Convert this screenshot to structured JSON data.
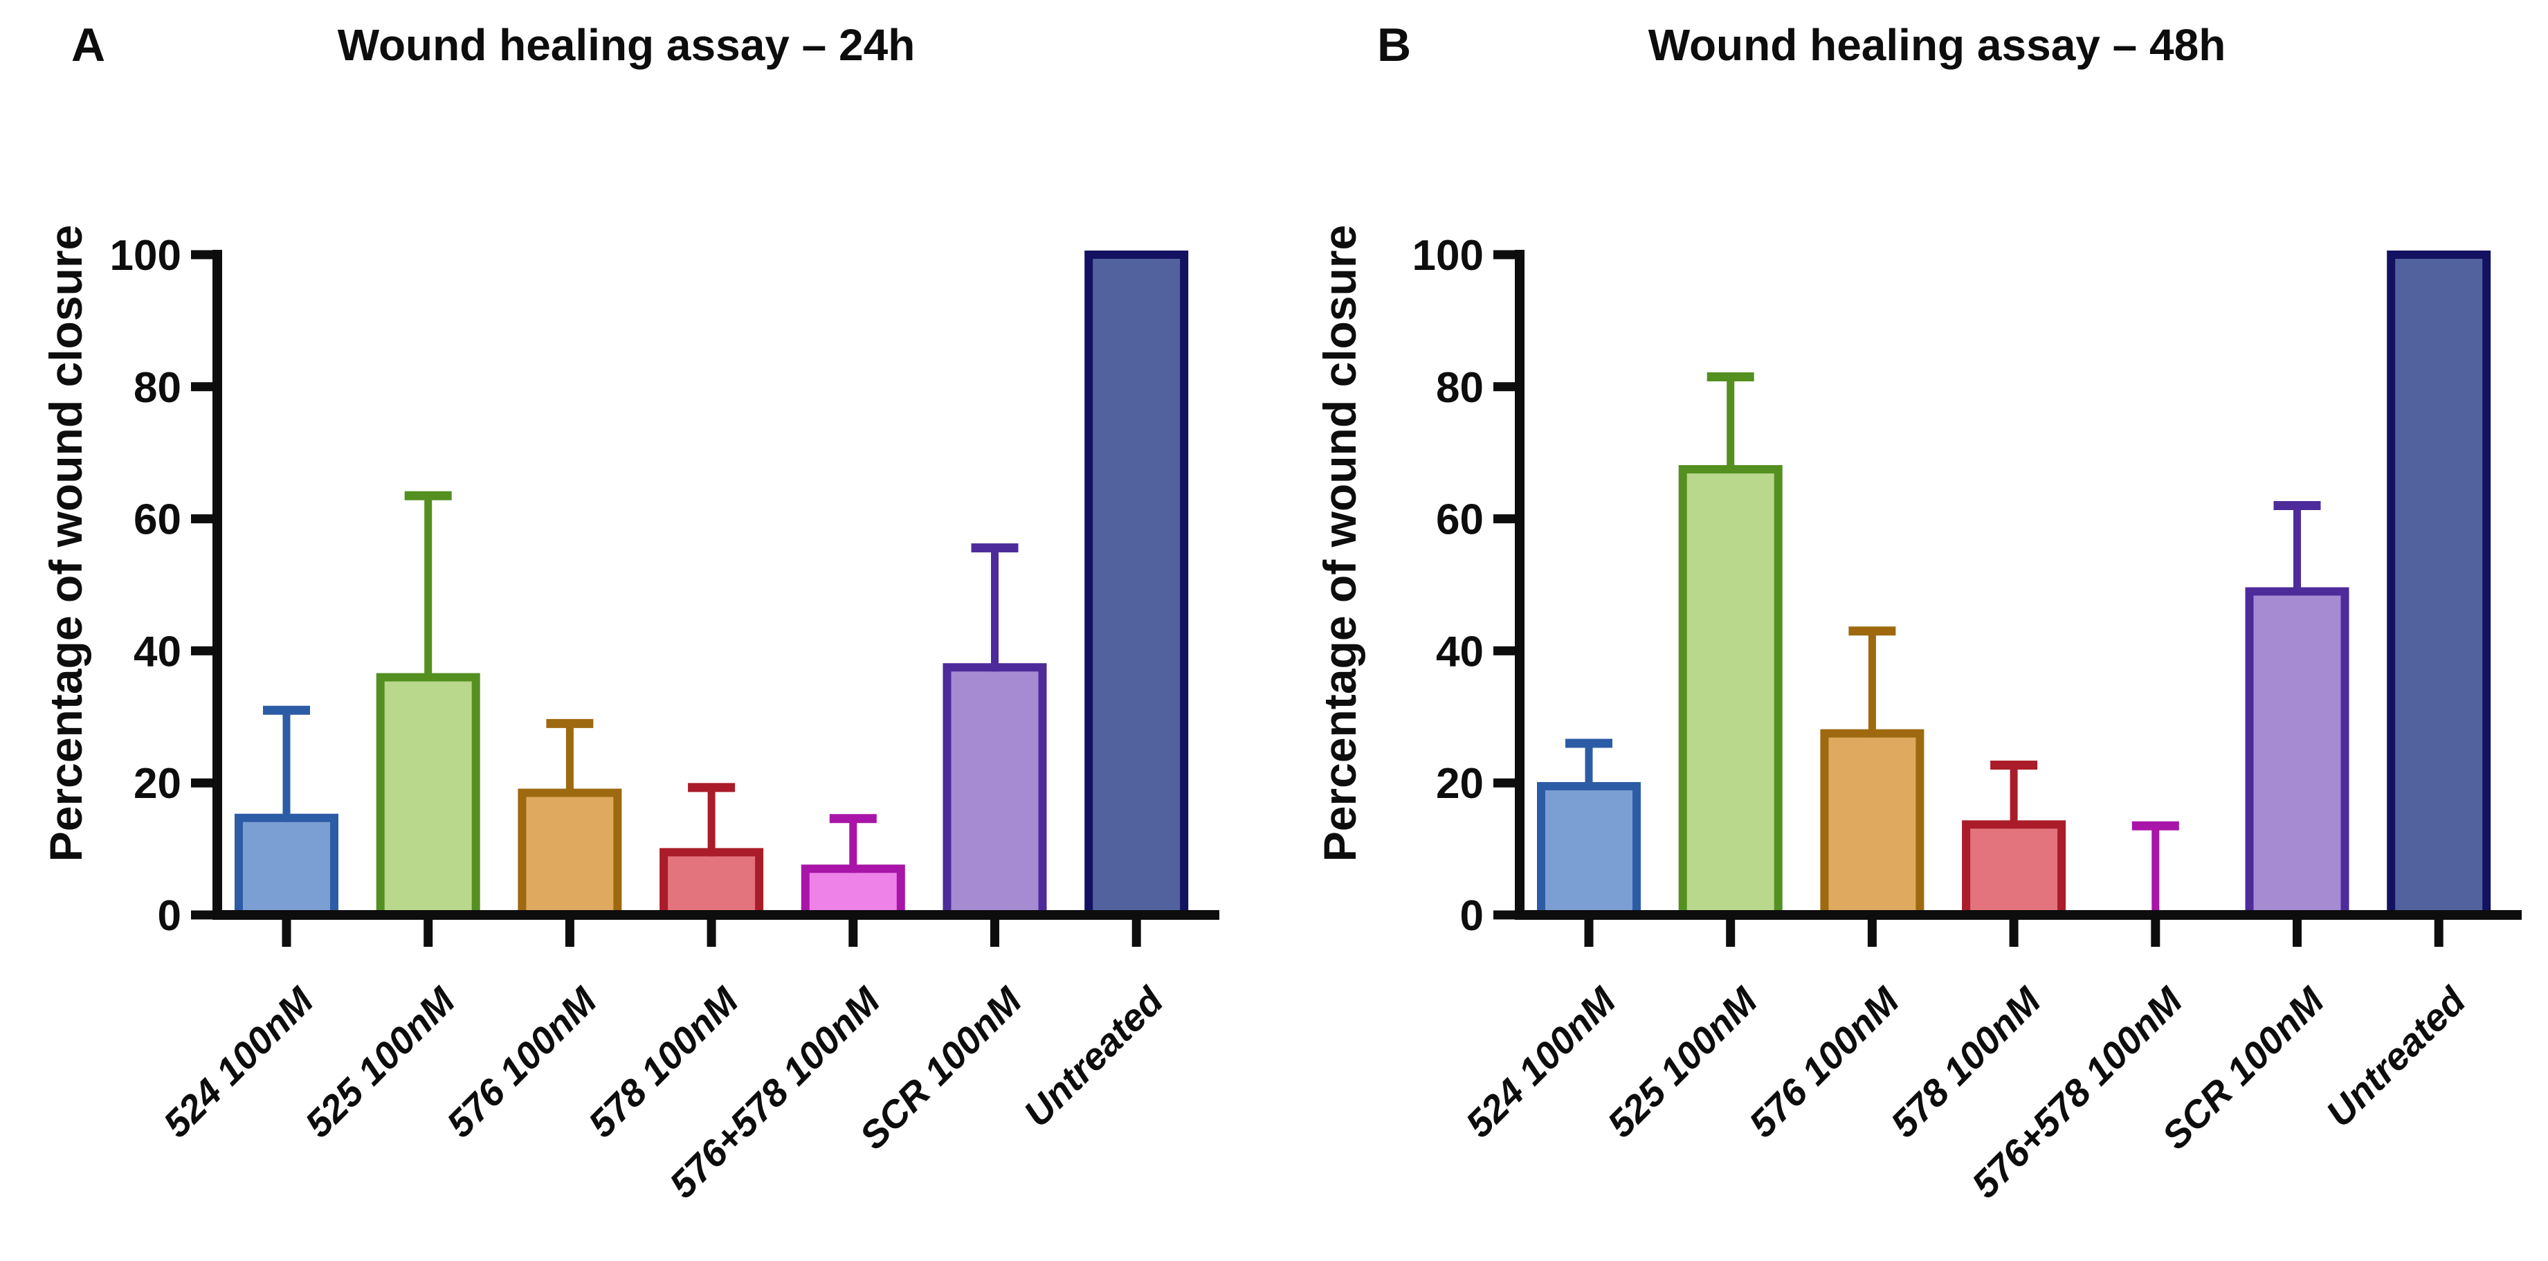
{
  "figure": {
    "background": "#ffffff",
    "text_color": "#0d0d0d",
    "axis_color": "#0d0d0d",
    "panels": [
      {
        "panel_label": "A",
        "title": "Wound healing assay – 24h",
        "ylabel": "Percentage of wound closure"
      },
      {
        "panel_label": "B",
        "title": "Wound healing assay – 48h",
        "ylabel": "Percentage of wound closure"
      }
    ]
  },
  "chart_data": [
    {
      "type": "bar",
      "panel": "A",
      "title": "Wound healing assay – 24h",
      "xlabel": "",
      "ylabel": "Percentage of wound closure",
      "ylim": [
        0,
        100
      ],
      "yticks": [
        0,
        20,
        40,
        60,
        80,
        100
      ],
      "grid": false,
      "legend": "none",
      "categories": [
        "524 100nM",
        "525 100nM",
        "576 100nM",
        "578 100nM",
        "576+578 100nM",
        "SCR 100nM",
        "Untreated"
      ],
      "values": [
        14.7,
        36,
        18.5,
        9.5,
        7,
        37.5,
        100
      ],
      "error_plus_top": [
        31,
        63.5,
        29,
        19.3,
        14.6,
        55.6,
        null
      ],
      "bar_fill_colors": [
        "#7C9FD3",
        "#B9D88B",
        "#DFA95F",
        "#E3747E",
        "#EE82E8",
        "#A68BD2",
        "#52629E"
      ],
      "bar_edge_colors": [
        "#2D5CA6",
        "#539020",
        "#9E690F",
        "#AA1C29",
        "#A815A8",
        "#4E2B9B",
        "#131260"
      ]
    },
    {
      "type": "bar",
      "panel": "B",
      "title": "Wound healing assay – 48h",
      "xlabel": "",
      "ylabel": "Percentage of wound closure",
      "ylim": [
        0,
        100
      ],
      "yticks": [
        0,
        20,
        40,
        60,
        80,
        100
      ],
      "grid": false,
      "legend": "none",
      "categories": [
        "524 100nM",
        "525 100nM",
        "576 100nM",
        "578 100nM",
        "576+578 100nM",
        "SCR 100nM",
        "Untreated"
      ],
      "values": [
        19.5,
        67.5,
        27.5,
        13.7,
        0,
        49,
        100
      ],
      "error_plus_top": [
        26,
        81.5,
        43,
        22.7,
        13.5,
        62,
        null
      ],
      "bar_fill_colors": [
        "#7C9FD3",
        "#B9D88B",
        "#DFA95F",
        "#E3747E",
        "#EE82E8",
        "#A68BD2",
        "#52629E"
      ],
      "bar_edge_colors": [
        "#2D5CA6",
        "#539020",
        "#9E690F",
        "#AA1C29",
        "#A815A8",
        "#4E2B9B",
        "#131260"
      ]
    }
  ]
}
